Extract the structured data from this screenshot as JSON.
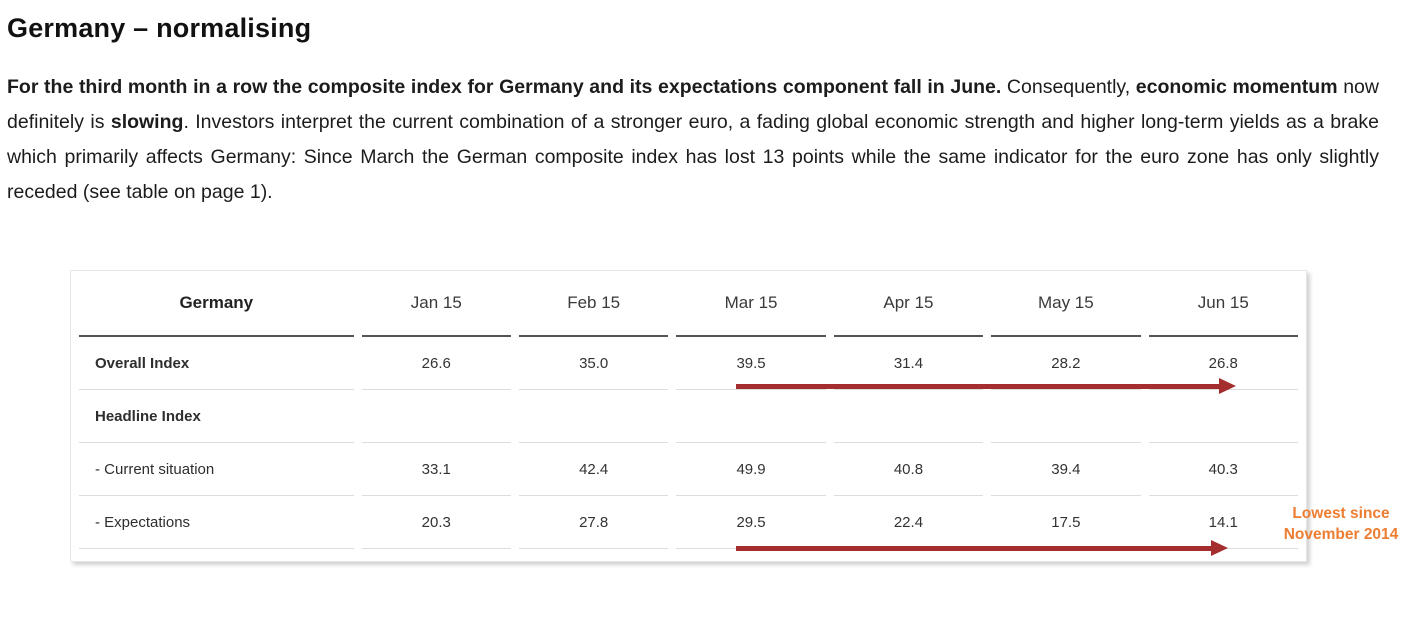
{
  "page": {
    "title": "Germany – normalising"
  },
  "paragraph": {
    "segments": [
      {
        "text": "For the third month in a row the composite index for Germany and its expectations component fall in June.",
        "bold": true
      },
      {
        "text": " Consequently, ",
        "bold": false
      },
      {
        "text": "economic momentum",
        "bold": true
      },
      {
        "text": " now definitely is ",
        "bold": false
      },
      {
        "text": "slowing",
        "bold": true
      },
      {
        "text": ". Investors interpret the current combination of a stronger euro, a fading global economic strength and higher long-term yields as a brake which primarily affects Germany: Since March the German composite index has lost 13 points while the same indicator for the euro zone has only slightly receded (see table on page 1).",
        "bold": false
      }
    ]
  },
  "table": {
    "header": [
      "Germany",
      "Jan 15",
      "Feb 15",
      "Mar 15",
      "Apr 15",
      "May 15",
      "Jun 15"
    ],
    "rows": [
      {
        "label": "Overall Index",
        "values": [
          "26.6",
          "35.0",
          "39.5",
          "31.4",
          "28.2",
          "26.8"
        ]
      },
      {
        "label": "Headline Index",
        "values": [
          "",
          "",
          "",
          "",
          "",
          ""
        ]
      },
      {
        "label": "- Current situation",
        "values": [
          "33.1",
          "42.4",
          "49.9",
          "40.8",
          "39.4",
          "40.3"
        ]
      },
      {
        "label": "- Expectations",
        "values": [
          "20.3",
          "27.8",
          "29.5",
          "22.4",
          "17.5",
          "14.1"
        ]
      }
    ]
  },
  "annotation": {
    "line1": "Lowest since",
    "line2": "November 2014"
  },
  "colors": {
    "arrow": "#A42E2E",
    "annotation": "#ED7D31"
  }
}
